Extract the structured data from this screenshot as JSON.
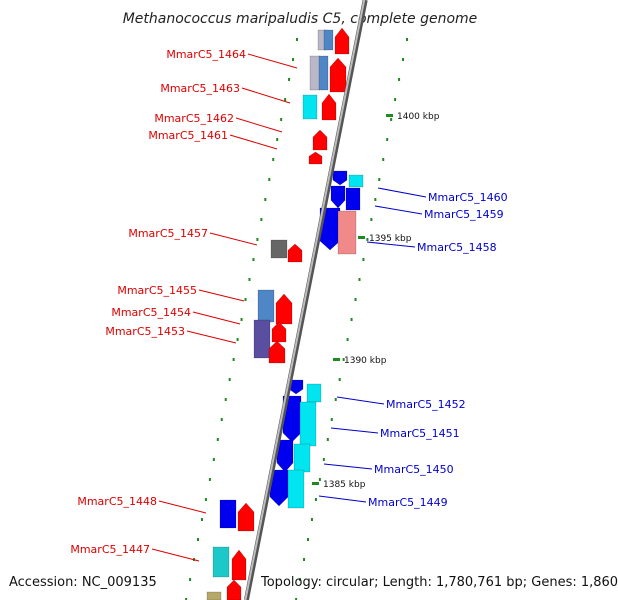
{
  "title": "Methanococcus maripaludis C5, complete genome",
  "footer": {
    "accession": "Accession: NC_009135",
    "topology": "Topology: circular; Length: 1,780,761 bp; Genes: 1,860"
  },
  "colors": {
    "backbone": "#7a7a7a",
    "tick": "#1f8a1f",
    "label_left": "#dd0000",
    "label_right": "#0000cc",
    "leader_left": "#dd0000",
    "leader_right": "#0000cc"
  },
  "scale_ticks": [
    {
      "label": "1400 kbp"
    },
    {
      "label": "1395 kbp"
    },
    {
      "label": "1390 kbp"
    },
    {
      "label": "1385 kbp"
    }
  ],
  "left_genes": [
    {
      "label": "MmarC5_1464"
    },
    {
      "label": "MmarC5_1463"
    },
    {
      "label": "MmarC5_1462"
    },
    {
      "label": "MmarC5_1461"
    },
    {
      "label": "MmarC5_1457"
    },
    {
      "label": "MmarC5_1455"
    },
    {
      "label": "MmarC5_1454"
    },
    {
      "label": "MmarC5_1453"
    },
    {
      "label": "MmarC5_1448"
    },
    {
      "label": "MmarC5_1447"
    }
  ],
  "right_genes": [
    {
      "label": "MmarC5_1460"
    },
    {
      "label": "MmarC5_1459"
    },
    {
      "label": "MmarC5_1458"
    },
    {
      "label": "MmarC5_1452"
    },
    {
      "label": "MmarC5_1451"
    },
    {
      "label": "MmarC5_1450"
    },
    {
      "label": "MmarC5_1449"
    }
  ]
}
